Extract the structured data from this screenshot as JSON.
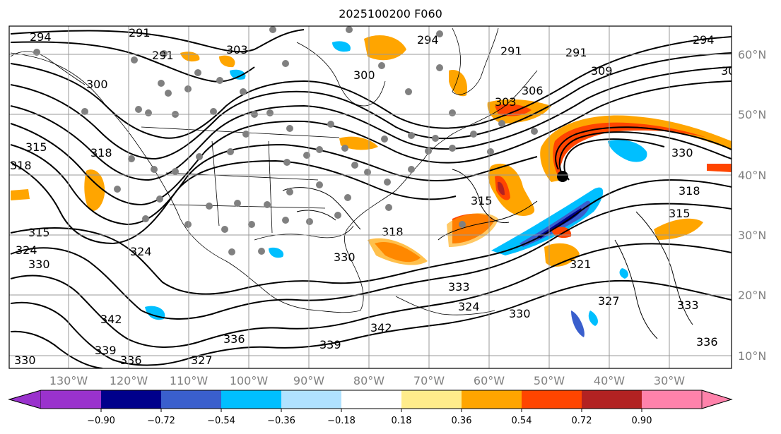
{
  "title": "2025100200 F060",
  "map": {
    "lat_labels": [
      "60°N",
      "50°N",
      "40°N",
      "30°N",
      "20°N",
      "10°N"
    ],
    "lon_labels": [
      "130°W",
      "120°W",
      "110°W",
      "100°W",
      "90°W",
      "80°W",
      "70°W",
      "60°W",
      "50°W",
      "40°W",
      "30°W"
    ],
    "contour_labels": [
      "294",
      "291",
      "291",
      "303",
      "300",
      "300",
      "294",
      "291",
      "291",
      "309",
      "306",
      "303",
      "294",
      "30",
      "315",
      "318",
      "318",
      "315",
      "315",
      "330",
      "318",
      "315",
      "324",
      "324",
      "330",
      "318",
      "330",
      "333",
      "324",
      "330",
      "342",
      "342",
      "339",
      "336",
      "339",
      "330",
      "327",
      "336",
      "333",
      "336",
      "321",
      "327"
    ],
    "label_color": "#808080"
  },
  "colorbar": {
    "ticks": [
      "−0.90",
      "−0.72",
      "−0.54",
      "−0.36",
      "−0.18",
      "0.18",
      "0.36",
      "0.54",
      "0.72",
      "0.90"
    ],
    "colors": [
      "#9a32cd",
      "#00008b",
      "#3a5fcd",
      "#00bfff",
      "#b0e2ff",
      "#ffffff",
      "#ffec8b",
      "#ffa500",
      "#ff4500",
      "#b22222",
      "#ff82ab"
    ]
  }
}
